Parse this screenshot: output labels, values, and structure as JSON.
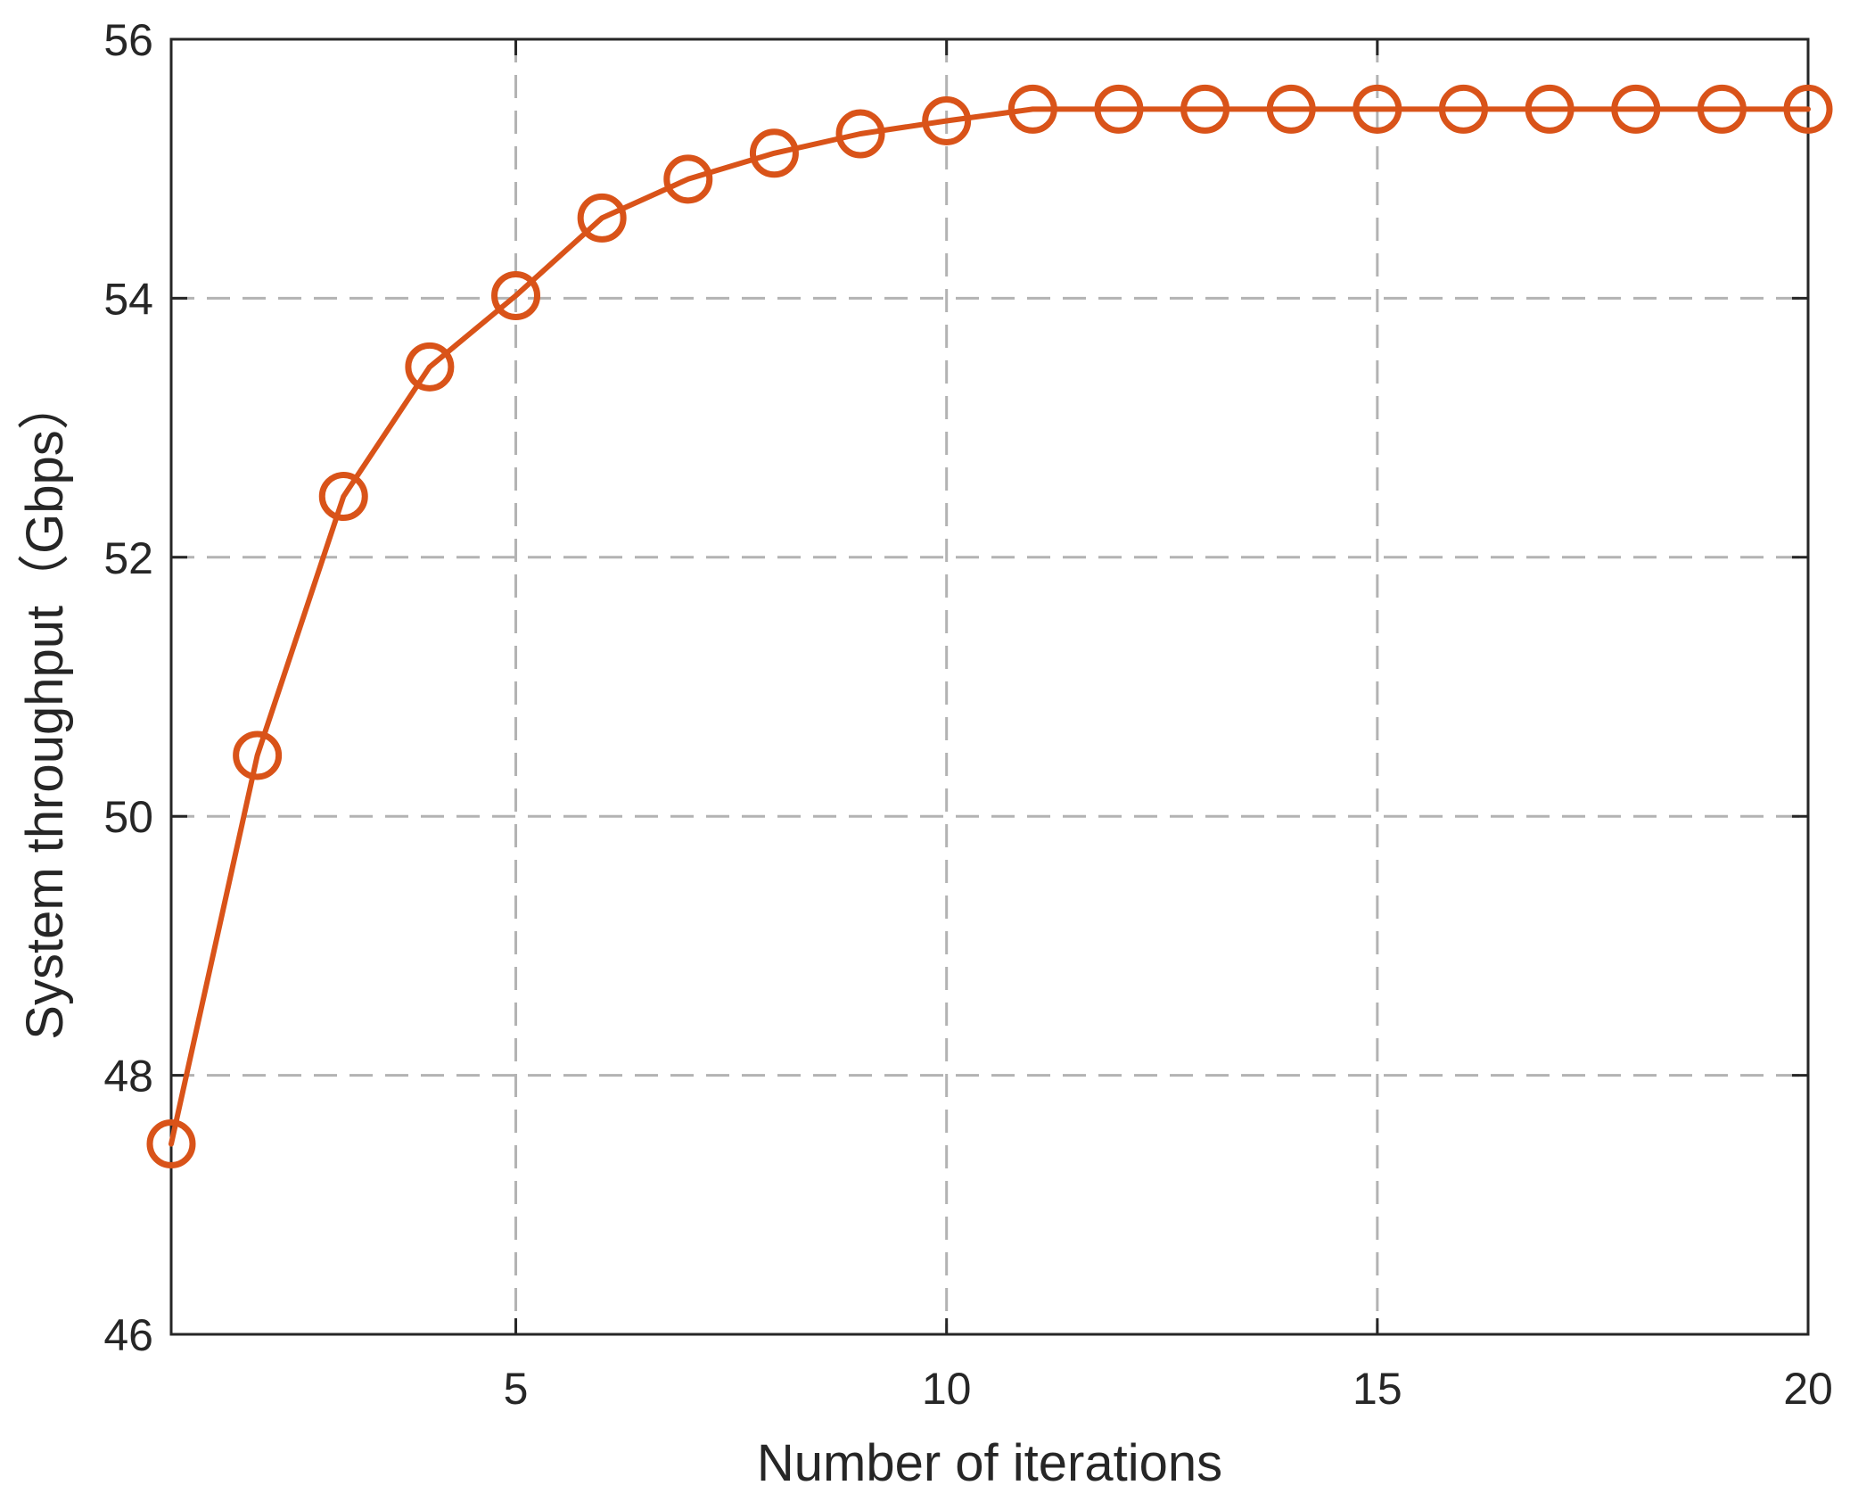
{
  "chart_data": {
    "type": "line",
    "title": "",
    "xlabel": "Number of iterations",
    "ylabel": "System throughput（Gbps）",
    "xlim": [
      1,
      20
    ],
    "ylim": [
      46,
      56
    ],
    "xticks": [
      5,
      10,
      15,
      20
    ],
    "yticks": [
      46,
      48,
      50,
      52,
      54,
      56
    ],
    "xtick_labels": [
      "5",
      "10",
      "15",
      "20"
    ],
    "ytick_labels": [
      "46",
      "48",
      "50",
      "52",
      "54",
      "56"
    ],
    "grid": true,
    "grid_style": "dashed",
    "legend": "none",
    "series": [
      {
        "color": "#D95319",
        "marker": "circle",
        "x": [
          1,
          2,
          3,
          4,
          5,
          6,
          7,
          8,
          9,
          10,
          11,
          12,
          13,
          14,
          15,
          16,
          17,
          18,
          19,
          20
        ],
        "values": [
          47.47,
          50.47,
          52.47,
          53.47,
          54.02,
          54.62,
          54.92,
          55.12,
          55.27,
          55.37,
          55.46,
          55.46,
          55.46,
          55.46,
          55.46,
          55.46,
          55.46,
          55.46,
          55.46,
          55.46
        ]
      }
    ]
  },
  "colors": {
    "axis": "#262626",
    "grid": "#b3b3b3",
    "series": "#D95319"
  }
}
